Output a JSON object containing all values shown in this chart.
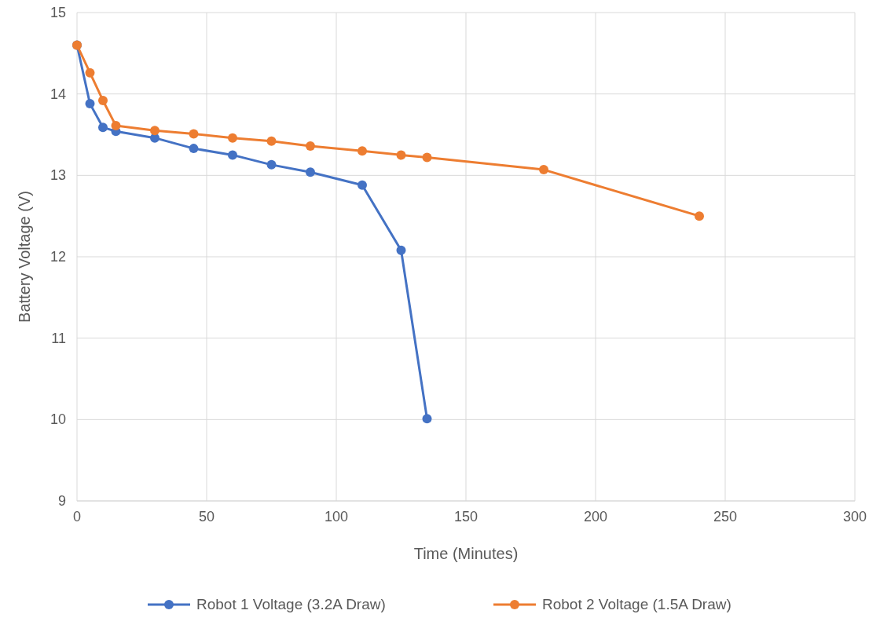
{
  "chart_data": {
    "type": "line",
    "xlabel": "Time (Minutes)",
    "ylabel": "Battery Voltage (V)",
    "xlim": [
      0,
      300
    ],
    "xticks": [
      0,
      50,
      100,
      150,
      200,
      250,
      300
    ],
    "ylim": [
      9,
      15
    ],
    "yticks": [
      9,
      10,
      11,
      12,
      13,
      14,
      15
    ],
    "grid": true,
    "legend": "bottom",
    "marker": "circle",
    "line_style": "solid",
    "series": [
      {
        "name": "Robot 1 Voltage (3.2A Draw)",
        "color": "#4472c4",
        "x": [
          0,
          5,
          10,
          15,
          30,
          45,
          60,
          75,
          90,
          110,
          125,
          135
        ],
        "values": [
          14.6,
          13.88,
          13.59,
          13.54,
          13.46,
          13.33,
          13.25,
          13.13,
          13.04,
          12.88,
          12.08,
          10.01
        ]
      },
      {
        "name": "Robot 2 Voltage (1.5A Draw)",
        "color": "#ed7d31",
        "x": [
          0,
          5,
          10,
          15,
          30,
          45,
          60,
          75,
          90,
          110,
          125,
          135,
          180,
          240
        ],
        "values": [
          14.6,
          14.26,
          13.92,
          13.61,
          13.55,
          13.51,
          13.46,
          13.42,
          13.36,
          13.3,
          13.25,
          13.22,
          13.07,
          12.5
        ]
      }
    ]
  }
}
